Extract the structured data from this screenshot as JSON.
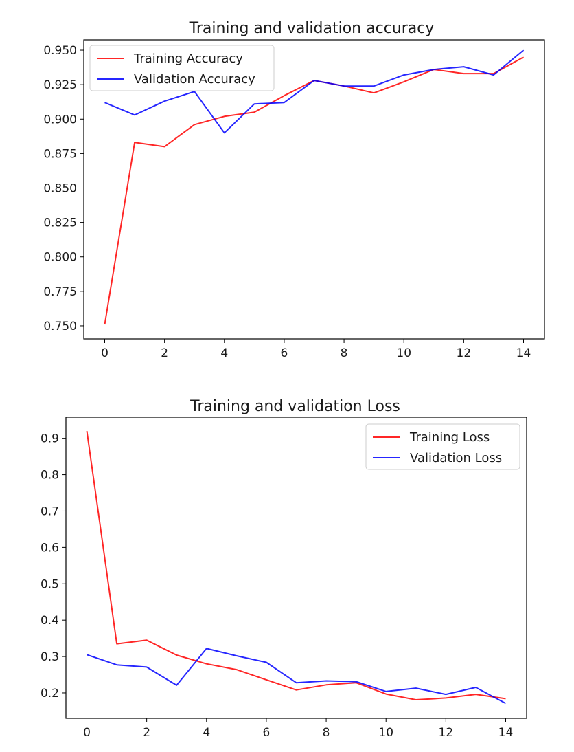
{
  "chart_data": [
    {
      "type": "line",
      "title": "Training and validation accuracy",
      "xlabel": "",
      "ylabel": "",
      "x": [
        0,
        1,
        2,
        3,
        4,
        5,
        6,
        7,
        8,
        9,
        10,
        11,
        12,
        13,
        14
      ],
      "xlim": [
        -0.7,
        14.7
      ],
      "ylim": [
        0.7405,
        0.9575
      ],
      "xticks": [
        0,
        2,
        4,
        6,
        8,
        10,
        12,
        14
      ],
      "yticks": [
        0.75,
        0.775,
        0.8,
        0.825,
        0.85,
        0.875,
        0.9,
        0.925,
        0.95
      ],
      "ytick_labels": [
        "0.750",
        "0.775",
        "0.800",
        "0.825",
        "0.850",
        "0.875",
        "0.900",
        "0.925",
        "0.950"
      ],
      "grid": false,
      "legend_position": "upper-left",
      "series": [
        {
          "name": "Training Accuracy",
          "color": "#ff0000",
          "values": [
            0.751,
            0.883,
            0.88,
            0.896,
            0.902,
            0.905,
            0.917,
            0.928,
            0.924,
            0.919,
            0.927,
            0.936,
            0.933,
            0.933,
            0.945
          ]
        },
        {
          "name": "Validation Accuracy",
          "color": "#0000ff",
          "values": [
            0.912,
            0.903,
            0.913,
            0.92,
            0.89,
            0.911,
            0.912,
            0.928,
            0.924,
            0.924,
            0.932,
            0.936,
            0.938,
            0.932,
            0.95
          ]
        }
      ]
    },
    {
      "type": "line",
      "title": "Training and validation Loss",
      "xlabel": "",
      "ylabel": "",
      "x": [
        0,
        1,
        2,
        3,
        4,
        5,
        6,
        7,
        8,
        9,
        10,
        11,
        12,
        13,
        14
      ],
      "xlim": [
        -0.7,
        14.7
      ],
      "ylim": [
        0.13,
        0.958
      ],
      "xticks": [
        0,
        2,
        4,
        6,
        8,
        10,
        12,
        14
      ],
      "yticks": [
        0.2,
        0.3,
        0.4,
        0.5,
        0.6,
        0.7,
        0.8,
        0.9
      ],
      "ytick_labels": [
        "0.2",
        "0.3",
        "0.4",
        "0.5",
        "0.6",
        "0.7",
        "0.8",
        "0.9"
      ],
      "grid": false,
      "legend_position": "upper-right",
      "series": [
        {
          "name": "Training Loss",
          "color": "#ff0000",
          "values": [
            0.92,
            0.335,
            0.345,
            0.304,
            0.28,
            0.264,
            0.236,
            0.208,
            0.222,
            0.228,
            0.197,
            0.181,
            0.186,
            0.196,
            0.184
          ]
        },
        {
          "name": "Validation Loss",
          "color": "#0000ff",
          "values": [
            0.305,
            0.277,
            0.271,
            0.221,
            0.322,
            0.302,
            0.284,
            0.228,
            0.233,
            0.231,
            0.204,
            0.213,
            0.196,
            0.215,
            0.171
          ]
        }
      ]
    }
  ]
}
